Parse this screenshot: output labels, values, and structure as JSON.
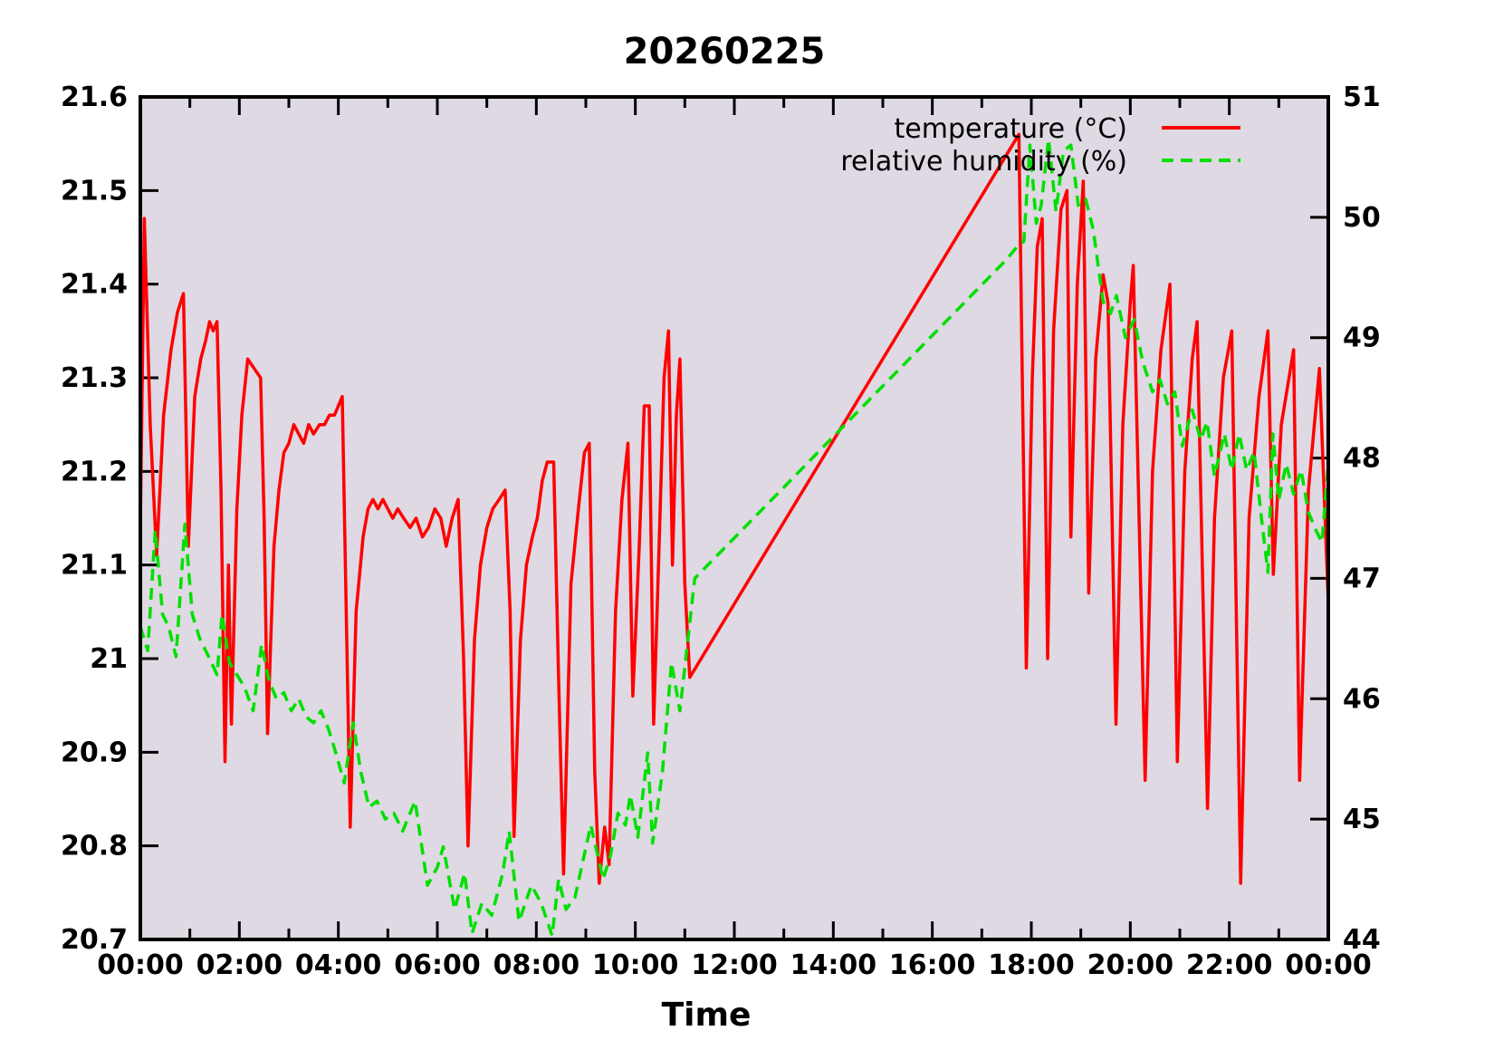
{
  "window": {
    "title": "20260225"
  },
  "chart_data": {
    "type": "line",
    "title": "20260225",
    "xlabel": "Time",
    "x_range": [
      0,
      24
    ],
    "x_ticks": [
      "00:00",
      "02:00",
      "04:00",
      "06:00",
      "08:00",
      "10:00",
      "12:00",
      "14:00",
      "16:00",
      "18:00",
      "20:00",
      "22:00",
      "00:00"
    ],
    "x_tick_hours": [
      0,
      2,
      4,
      6,
      8,
      10,
      12,
      14,
      16,
      18,
      20,
      22,
      24
    ],
    "grid": "off",
    "plot_bg_color": "#ded9e3",
    "axis_color": "#000000",
    "legend_position": "top-right-inside",
    "data_gap_note": "no samples between ~11:10 and ~17:45; lines bridge the gap straight",
    "y_left": {
      "label": "temperature (°C)",
      "range": [
        20.7,
        21.6
      ],
      "tick_values": [
        21.6,
        21.5,
        21.4,
        21.3,
        21.2,
        21.1,
        21.0,
        20.9,
        20.8,
        20.7
      ],
      "tick_labels": [
        "21.6",
        "21.5",
        "21.4",
        "21.3",
        "21.2",
        "21.1",
        "21",
        "20.9",
        "20.8",
        "20.7"
      ]
    },
    "y_right": {
      "label": "relative humidity (%)",
      "range": [
        44,
        51
      ],
      "tick_values": [
        51,
        50,
        49,
        48,
        47,
        46,
        45,
        44
      ],
      "tick_labels": [
        "51",
        "50",
        "49",
        "48",
        "47",
        "46",
        "45",
        "44"
      ]
    },
    "series": [
      {
        "name": "temperature (°C)",
        "axis": "left",
        "color": "#ff0000",
        "style": "solid",
        "points": [
          [
            0.0,
            21.14
          ],
          [
            0.08,
            21.47
          ],
          [
            0.2,
            21.25
          ],
          [
            0.33,
            21.11
          ],
          [
            0.47,
            21.26
          ],
          [
            0.62,
            21.33
          ],
          [
            0.75,
            21.37
          ],
          [
            0.87,
            21.39
          ],
          [
            0.97,
            21.12
          ],
          [
            1.1,
            21.28
          ],
          [
            1.22,
            21.32
          ],
          [
            1.32,
            21.34
          ],
          [
            1.4,
            21.36
          ],
          [
            1.47,
            21.35
          ],
          [
            1.55,
            21.36
          ],
          [
            1.63,
            21.18
          ],
          [
            1.71,
            20.89
          ],
          [
            1.78,
            21.1
          ],
          [
            1.84,
            20.93
          ],
          [
            1.95,
            21.16
          ],
          [
            2.05,
            21.26
          ],
          [
            2.17,
            21.32
          ],
          [
            2.3,
            21.31
          ],
          [
            2.43,
            21.3
          ],
          [
            2.5,
            21.15
          ],
          [
            2.57,
            20.92
          ],
          [
            2.7,
            21.12
          ],
          [
            2.8,
            21.18
          ],
          [
            2.9,
            21.22
          ],
          [
            3.0,
            21.23
          ],
          [
            3.1,
            21.25
          ],
          [
            3.2,
            21.24
          ],
          [
            3.3,
            21.23
          ],
          [
            3.4,
            21.25
          ],
          [
            3.5,
            21.24
          ],
          [
            3.62,
            21.25
          ],
          [
            3.72,
            21.25
          ],
          [
            3.82,
            21.26
          ],
          [
            3.92,
            21.26
          ],
          [
            4.0,
            21.27
          ],
          [
            4.08,
            21.28
          ],
          [
            4.16,
            21.05
          ],
          [
            4.24,
            20.82
          ],
          [
            4.36,
            21.05
          ],
          [
            4.5,
            21.13
          ],
          [
            4.6,
            21.16
          ],
          [
            4.7,
            21.17
          ],
          [
            4.8,
            21.16
          ],
          [
            4.9,
            21.17
          ],
          [
            5.0,
            21.16
          ],
          [
            5.1,
            21.15
          ],
          [
            5.2,
            21.16
          ],
          [
            5.32,
            21.15
          ],
          [
            5.45,
            21.14
          ],
          [
            5.57,
            21.15
          ],
          [
            5.7,
            21.13
          ],
          [
            5.82,
            21.14
          ],
          [
            5.95,
            21.16
          ],
          [
            6.07,
            21.15
          ],
          [
            6.18,
            21.12
          ],
          [
            6.3,
            21.15
          ],
          [
            6.42,
            21.17
          ],
          [
            6.53,
            21.0
          ],
          [
            6.62,
            20.8
          ],
          [
            6.75,
            21.02
          ],
          [
            6.87,
            21.1
          ],
          [
            7.0,
            21.14
          ],
          [
            7.12,
            21.16
          ],
          [
            7.25,
            21.17
          ],
          [
            7.37,
            21.18
          ],
          [
            7.47,
            21.05
          ],
          [
            7.55,
            20.81
          ],
          [
            7.68,
            21.02
          ],
          [
            7.8,
            21.1
          ],
          [
            7.92,
            21.13
          ],
          [
            8.02,
            21.15
          ],
          [
            8.12,
            21.19
          ],
          [
            8.22,
            21.21
          ],
          [
            8.35,
            21.21
          ],
          [
            8.45,
            20.98
          ],
          [
            8.55,
            20.77
          ],
          [
            8.7,
            21.08
          ],
          [
            8.85,
            21.16
          ],
          [
            8.97,
            21.22
          ],
          [
            9.07,
            21.23
          ],
          [
            9.18,
            20.88
          ],
          [
            9.27,
            20.76
          ],
          [
            9.38,
            20.82
          ],
          [
            9.47,
            20.78
          ],
          [
            9.6,
            21.05
          ],
          [
            9.73,
            21.17
          ],
          [
            9.85,
            21.23
          ],
          [
            9.95,
            20.96
          ],
          [
            10.08,
            21.12
          ],
          [
            10.18,
            21.27
          ],
          [
            10.28,
            21.27
          ],
          [
            10.37,
            20.93
          ],
          [
            10.48,
            21.12
          ],
          [
            10.58,
            21.3
          ],
          [
            10.67,
            21.35
          ],
          [
            10.75,
            21.1
          ],
          [
            10.83,
            21.26
          ],
          [
            10.9,
            21.32
          ],
          [
            11.0,
            21.08
          ],
          [
            11.1,
            20.98
          ],
          [
            17.75,
            21.56
          ],
          [
            17.9,
            20.99
          ],
          [
            18.02,
            21.3
          ],
          [
            18.12,
            21.44
          ],
          [
            18.22,
            21.47
          ],
          [
            18.33,
            21.0
          ],
          [
            18.45,
            21.35
          ],
          [
            18.6,
            21.48
          ],
          [
            18.72,
            21.5
          ],
          [
            18.8,
            21.13
          ],
          [
            18.93,
            21.4
          ],
          [
            19.05,
            21.51
          ],
          [
            19.16,
            21.07
          ],
          [
            19.3,
            21.32
          ],
          [
            19.45,
            21.41
          ],
          [
            19.55,
            21.38
          ],
          [
            19.71,
            20.93
          ],
          [
            19.85,
            21.25
          ],
          [
            20.0,
            21.38
          ],
          [
            20.06,
            21.42
          ],
          [
            20.3,
            20.87
          ],
          [
            20.45,
            21.2
          ],
          [
            20.62,
            21.33
          ],
          [
            20.8,
            21.4
          ],
          [
            20.95,
            20.89
          ],
          [
            21.1,
            21.2
          ],
          [
            21.25,
            21.32
          ],
          [
            21.35,
            21.36
          ],
          [
            21.56,
            20.84
          ],
          [
            21.7,
            21.15
          ],
          [
            21.88,
            21.3
          ],
          [
            22.05,
            21.35
          ],
          [
            22.23,
            20.76
          ],
          [
            22.4,
            21.15
          ],
          [
            22.6,
            21.28
          ],
          [
            22.78,
            21.35
          ],
          [
            22.89,
            21.09
          ],
          [
            23.05,
            21.25
          ],
          [
            23.3,
            21.33
          ],
          [
            23.42,
            20.87
          ],
          [
            23.6,
            21.18
          ],
          [
            23.82,
            21.31
          ],
          [
            24.0,
            21.06
          ]
        ]
      },
      {
        "name": "relative humidity (%)",
        "axis": "right",
        "color": "#00e000",
        "style": "dashed",
        "points": [
          [
            0.0,
            46.6
          ],
          [
            0.15,
            46.4
          ],
          [
            0.3,
            47.4
          ],
          [
            0.45,
            46.7
          ],
          [
            0.57,
            46.6
          ],
          [
            0.72,
            46.35
          ],
          [
            0.9,
            47.45
          ],
          [
            1.05,
            46.7
          ],
          [
            1.2,
            46.5
          ],
          [
            1.38,
            46.35
          ],
          [
            1.55,
            46.2
          ],
          [
            1.65,
            46.7
          ],
          [
            1.8,
            46.3
          ],
          [
            1.95,
            46.2
          ],
          [
            2.1,
            46.1
          ],
          [
            2.28,
            45.9
          ],
          [
            2.45,
            46.45
          ],
          [
            2.6,
            46.15
          ],
          [
            2.75,
            46.0
          ],
          [
            2.9,
            46.05
          ],
          [
            3.05,
            45.9
          ],
          [
            3.2,
            46.0
          ],
          [
            3.35,
            45.85
          ],
          [
            3.5,
            45.8
          ],
          [
            3.65,
            45.9
          ],
          [
            3.8,
            45.75
          ],
          [
            3.95,
            45.55
          ],
          [
            4.12,
            45.3
          ],
          [
            4.3,
            45.8
          ],
          [
            4.45,
            45.4
          ],
          [
            4.62,
            45.1
          ],
          [
            4.78,
            45.15
          ],
          [
            4.95,
            45.0
          ],
          [
            5.12,
            45.05
          ],
          [
            5.3,
            44.9
          ],
          [
            5.55,
            45.15
          ],
          [
            5.8,
            44.45
          ],
          [
            6.0,
            44.6
          ],
          [
            6.12,
            44.77
          ],
          [
            6.35,
            44.25
          ],
          [
            6.55,
            44.55
          ],
          [
            6.7,
            44.05
          ],
          [
            6.9,
            44.3
          ],
          [
            7.1,
            44.2
          ],
          [
            7.32,
            44.55
          ],
          [
            7.45,
            44.9
          ],
          [
            7.65,
            44.15
          ],
          [
            7.9,
            44.45
          ],
          [
            8.1,
            44.3
          ],
          [
            8.32,
            44.03
          ],
          [
            8.45,
            44.5
          ],
          [
            8.6,
            44.25
          ],
          [
            8.78,
            44.35
          ],
          [
            9.1,
            44.95
          ],
          [
            9.35,
            44.5
          ],
          [
            9.5,
            44.7
          ],
          [
            9.65,
            45.05
          ],
          [
            9.8,
            44.95
          ],
          [
            9.9,
            45.2
          ],
          [
            10.05,
            44.85
          ],
          [
            10.25,
            45.55
          ],
          [
            10.35,
            44.8
          ],
          [
            10.55,
            45.4
          ],
          [
            10.73,
            46.3
          ],
          [
            10.9,
            45.9
          ],
          [
            11.2,
            47.0
          ],
          [
            17.5,
            49.65
          ],
          [
            17.7,
            49.75
          ],
          [
            17.85,
            49.8
          ],
          [
            17.97,
            50.6
          ],
          [
            18.1,
            49.95
          ],
          [
            18.2,
            50.1
          ],
          [
            18.35,
            50.65
          ],
          [
            18.5,
            50.05
          ],
          [
            18.65,
            50.55
          ],
          [
            18.8,
            50.6
          ],
          [
            18.95,
            50.1
          ],
          [
            19.1,
            50.15
          ],
          [
            19.25,
            49.9
          ],
          [
            19.45,
            49.3
          ],
          [
            19.6,
            49.2
          ],
          [
            19.72,
            49.35
          ],
          [
            19.9,
            49.0
          ],
          [
            20.08,
            49.15
          ],
          [
            20.25,
            48.8
          ],
          [
            20.45,
            48.55
          ],
          [
            20.6,
            48.65
          ],
          [
            20.75,
            48.45
          ],
          [
            20.9,
            48.55
          ],
          [
            21.05,
            48.1
          ],
          [
            21.25,
            48.4
          ],
          [
            21.42,
            48.15
          ],
          [
            21.55,
            48.3
          ],
          [
            21.7,
            47.85
          ],
          [
            21.9,
            48.2
          ],
          [
            22.05,
            47.9
          ],
          [
            22.2,
            48.2
          ],
          [
            22.35,
            47.9
          ],
          [
            22.5,
            48.05
          ],
          [
            22.65,
            47.5
          ],
          [
            22.78,
            47.05
          ],
          [
            22.88,
            48.2
          ],
          [
            23.0,
            47.65
          ],
          [
            23.15,
            47.95
          ],
          [
            23.3,
            47.7
          ],
          [
            23.45,
            47.9
          ],
          [
            23.6,
            47.55
          ],
          [
            23.75,
            47.4
          ],
          [
            23.87,
            47.3
          ],
          [
            24.0,
            47.95
          ]
        ]
      }
    ]
  }
}
